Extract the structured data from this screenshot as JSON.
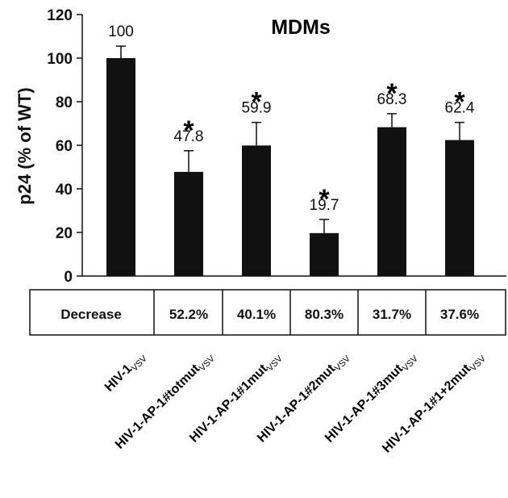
{
  "chart_data": {
    "type": "bar",
    "title": "MDMs",
    "ylabel": "p24 (% of WT)",
    "ylim": [
      0,
      120
    ],
    "yticks": [
      0,
      20,
      40,
      60,
      80,
      100,
      120
    ],
    "categories": [
      {
        "main": "HIV-1",
        "sub": "VSV"
      },
      {
        "main": "HIV-1-AP-1#totmut",
        "sub": "VSV"
      },
      {
        "main": "HIV-1-AP-1#1mut",
        "sub": "VSV"
      },
      {
        "main": "HIV-1-AP-1#2mut",
        "sub": "VSV"
      },
      {
        "main": "HIV-1-AP-1#3mut",
        "sub": "VSV"
      },
      {
        "main": "HIV-1-AP-1#1+2mut",
        "sub": "VSV"
      }
    ],
    "values": [
      100,
      47.8,
      59.9,
      19.7,
      68.3,
      62.4
    ],
    "value_labels": [
      "100",
      "47.8",
      "59.9",
      "19.7",
      "68.3",
      "62.4"
    ],
    "error_upper": [
      105.5,
      57.5,
      70.5,
      26,
      74.5,
      70.5
    ],
    "significance": [
      "",
      "*",
      "*",
      "*",
      "*",
      "*"
    ],
    "bar_color": "#111111",
    "grid": false,
    "table": {
      "row_label": "Decrease",
      "cells": [
        "52.2%",
        "40.1%",
        "80.3%",
        "31.7%",
        "37.6%"
      ]
    }
  }
}
